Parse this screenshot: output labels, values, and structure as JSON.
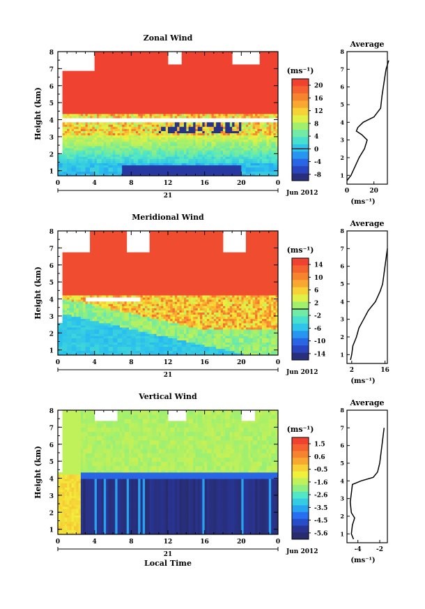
{
  "date_label": "Jun 2012",
  "day_label": "21",
  "local_time_label": "Local Time",
  "height_label": "Height (km)",
  "unit_label": "(ms⁻¹)",
  "average_title": "Average",
  "panels": [
    {
      "key": "zonal",
      "title": "Zonal Wind",
      "colorbar_ticks": [
        "20",
        "16",
        "12",
        "8",
        "4",
        "0",
        "-4",
        "-8"
      ],
      "colorbar_zero_line_index": 5,
      "avg_xticks": [
        "0",
        "20"
      ]
    },
    {
      "key": "meridional",
      "title": "Meridional Wind",
      "colorbar_ticks": [
        "14",
        "10",
        "6",
        "2",
        "-2",
        "-6",
        "-10",
        "-14"
      ],
      "colorbar_zero_line_index": 3.5,
      "avg_xticks": [
        "2",
        "16"
      ]
    },
    {
      "key": "vertical",
      "title": "Vertical Wind",
      "colorbar_ticks": [
        "1.5",
        "0.6",
        "-0.5",
        "-1.6",
        "-2.6",
        "-3.5",
        "-4.5",
        "-5.6"
      ],
      "colorbar_zero_line_index": null,
      "avg_xticks": [
        "-4",
        "-2"
      ]
    }
  ],
  "chart_data": [
    {
      "type": "heatmap",
      "title": "Zonal Wind",
      "xlabel": "",
      "ylabel": "Height (km)",
      "x_ticks": [
        "0",
        "4",
        "8",
        "12",
        "16",
        "20",
        "0"
      ],
      "y_ticks": [
        "1",
        "2",
        "3",
        "4",
        "5",
        "6",
        "7",
        "8"
      ],
      "xlim": [
        0,
        24
      ],
      "ylim": [
        0.7,
        8
      ],
      "colorbar_unit": "(ms⁻¹)",
      "colorbar_range": [
        -10,
        22
      ],
      "average_profile": {
        "x_ticks": [
          "0",
          "20"
        ],
        "xlim": [
          0,
          30
        ],
        "height": [
          0.7,
          1.0,
          1.5,
          2.0,
          2.5,
          3.0,
          3.3,
          3.5,
          3.7,
          4.0,
          4.3,
          4.8,
          5.5,
          6.0,
          6.5,
          7.0,
          7.5
        ],
        "value": [
          0,
          3,
          6,
          9,
          13,
          15,
          11,
          7,
          8,
          12,
          20,
          25,
          26,
          27,
          28,
          29,
          31
        ]
      }
    },
    {
      "type": "heatmap",
      "title": "Meridional Wind",
      "xlabel": "",
      "ylabel": "Height (km)",
      "x_ticks": [
        "0",
        "4",
        "8",
        "12",
        "16",
        "20",
        "0"
      ],
      "y_ticks": [
        "1",
        "2",
        "3",
        "4",
        "5",
        "6",
        "7",
        "8"
      ],
      "xlim": [
        0,
        24
      ],
      "ylim": [
        0.7,
        8
      ],
      "colorbar_unit": "(ms⁻¹)",
      "colorbar_range": [
        -16,
        16
      ],
      "average_profile": {
        "x_ticks": [
          "2",
          "16"
        ],
        "xlim": [
          0,
          17
        ],
        "height": [
          0.7,
          1.0,
          1.5,
          2.0,
          2.5,
          3.0,
          3.5,
          4.0,
          4.3,
          4.6,
          5.0,
          5.5,
          6.0,
          6.5,
          7.0
        ],
        "value": [
          1.5,
          2,
          2.5,
          4,
          5,
          7,
          9,
          12,
          13,
          14,
          15,
          15.5,
          16,
          16.5,
          17
        ]
      }
    },
    {
      "type": "heatmap",
      "title": "Vertical Wind",
      "xlabel": "Local Time",
      "ylabel": "Height (km)",
      "x_ticks": [
        "0",
        "4",
        "8",
        "12",
        "16",
        "20",
        "0"
      ],
      "y_ticks": [
        "1",
        "2",
        "3",
        "4",
        "5",
        "6",
        "7",
        "8"
      ],
      "xlim": [
        0,
        24
      ],
      "ylim": [
        0.7,
        8
      ],
      "colorbar_unit": "(ms⁻¹)",
      "colorbar_range": [
        -6.1,
        2
      ],
      "average_profile": {
        "x_ticks": [
          "-4",
          "-2"
        ],
        "xlim": [
          -5,
          -1.3
        ],
        "height": [
          0.7,
          1.0,
          1.5,
          1.9,
          2.2,
          2.8,
          3.3,
          3.8,
          4.0,
          4.2,
          4.5,
          5.0,
          6.0,
          7.0
        ],
        "value": [
          -4.4,
          -4.6,
          -4.5,
          -4.3,
          -4.6,
          -4.7,
          -4.6,
          -4.5,
          -3.7,
          -2.6,
          -2.2,
          -2.0,
          -1.8,
          -1.6
        ]
      }
    }
  ]
}
